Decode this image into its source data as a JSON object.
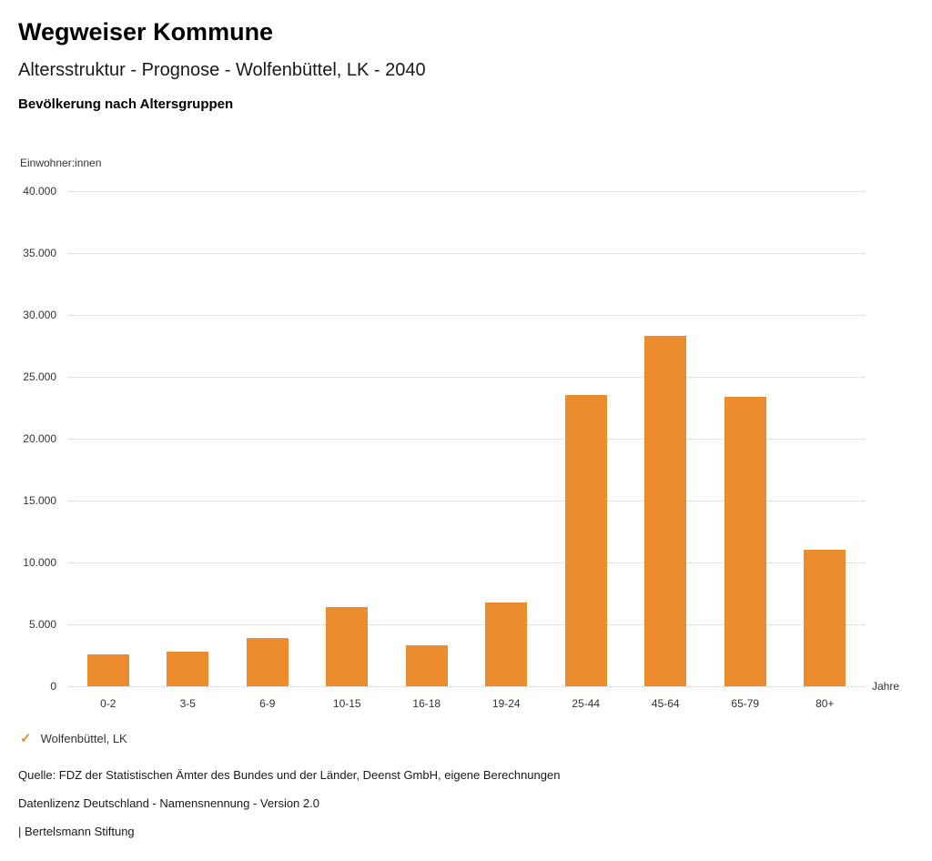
{
  "header": {
    "title": "Wegweiser Kommune",
    "subtitle": "Altersstruktur - Prognose - Wolfenbüttel, LK - 2040",
    "chart_heading": "Bevölkerung nach Altersgruppen"
  },
  "chart_data": {
    "type": "bar",
    "title": "Bevölkerung nach Altersgruppen",
    "ylabel": "Einwohner:innen",
    "xlabel": "Jahre",
    "categories": [
      "0-2",
      "3-5",
      "6-9",
      "10-15",
      "16-18",
      "19-24",
      "25-44",
      "45-64",
      "65-79",
      "80+"
    ],
    "values": [
      2600,
      2800,
      3900,
      6400,
      3300,
      6800,
      23500,
      28300,
      23400,
      11000
    ],
    "series_name": "Wolfenbüttel, LK",
    "ylim": [
      0,
      40000
    ],
    "ytick_step": 5000,
    "ytick_labels": [
      "0",
      "5.000",
      "10.000",
      "15.000",
      "20.000",
      "25.000",
      "30.000",
      "35.000",
      "40.000"
    ],
    "grid": true,
    "legend_position": "bottom-left",
    "bar_color": "#ed8b2f"
  },
  "legend": {
    "marker": "✓",
    "marker_color": "#ed8b2f",
    "label": "Wolfenbüttel, LK"
  },
  "footer": {
    "source": "Quelle: FDZ der Statistischen Ämter des Bundes und der Länder, Deenst GmbH, eigene Berechnungen",
    "license": "Datenlizenz Deutschland - Namensnennung - Version 2.0",
    "attribution": "| Bertelsmann Stiftung"
  }
}
